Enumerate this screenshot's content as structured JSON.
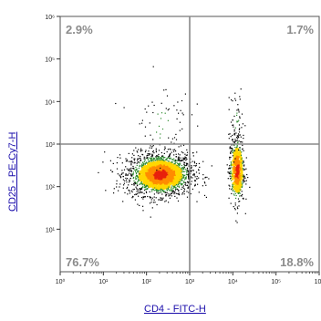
{
  "chart_data": {
    "type": "scatter",
    "xlabel": "CD4 - FITC-H",
    "ylabel": "CD25 - PE-Cy7-H",
    "x_scale": "log",
    "y_scale": "log",
    "xlim": [
      1,
      1000000
    ],
    "ylim": [
      1,
      1000000
    ],
    "x_ticks": [
      "10⁰",
      "10¹",
      "10²",
      "10³",
      "10⁴",
      "10⁵",
      "10⁶"
    ],
    "y_ticks": [
      "10¹",
      "10²",
      "10³",
      "10⁴",
      "10⁵",
      "10⁶"
    ],
    "y_tick_values": [
      10,
      100,
      1000,
      10000,
      100000,
      1000000
    ],
    "x_tick_values": [
      1,
      10,
      100,
      1000,
      10000,
      100000,
      1000000
    ],
    "gate": {
      "x": 1000,
      "y": 1000
    },
    "quadrants": {
      "upper_left": "2.9%",
      "upper_right": "1.7%",
      "lower_left": "76.7%",
      "lower_right": "18.8%"
    },
    "populations": [
      {
        "center": [
          200,
          200
        ],
        "share": 0.767
      },
      {
        "center": [
          12000,
          250
        ],
        "share": 0.188
      },
      {
        "center": [
          12000,
          3000
        ],
        "share": 0.017
      },
      {
        "center": [
          200,
          3000
        ],
        "share": 0.029
      }
    ],
    "colors": {
      "low": "#000000",
      "mid": "#2e8b2e",
      "high": "#ffd700",
      "peak": "#e8200c",
      "gate": "#888888"
    }
  }
}
